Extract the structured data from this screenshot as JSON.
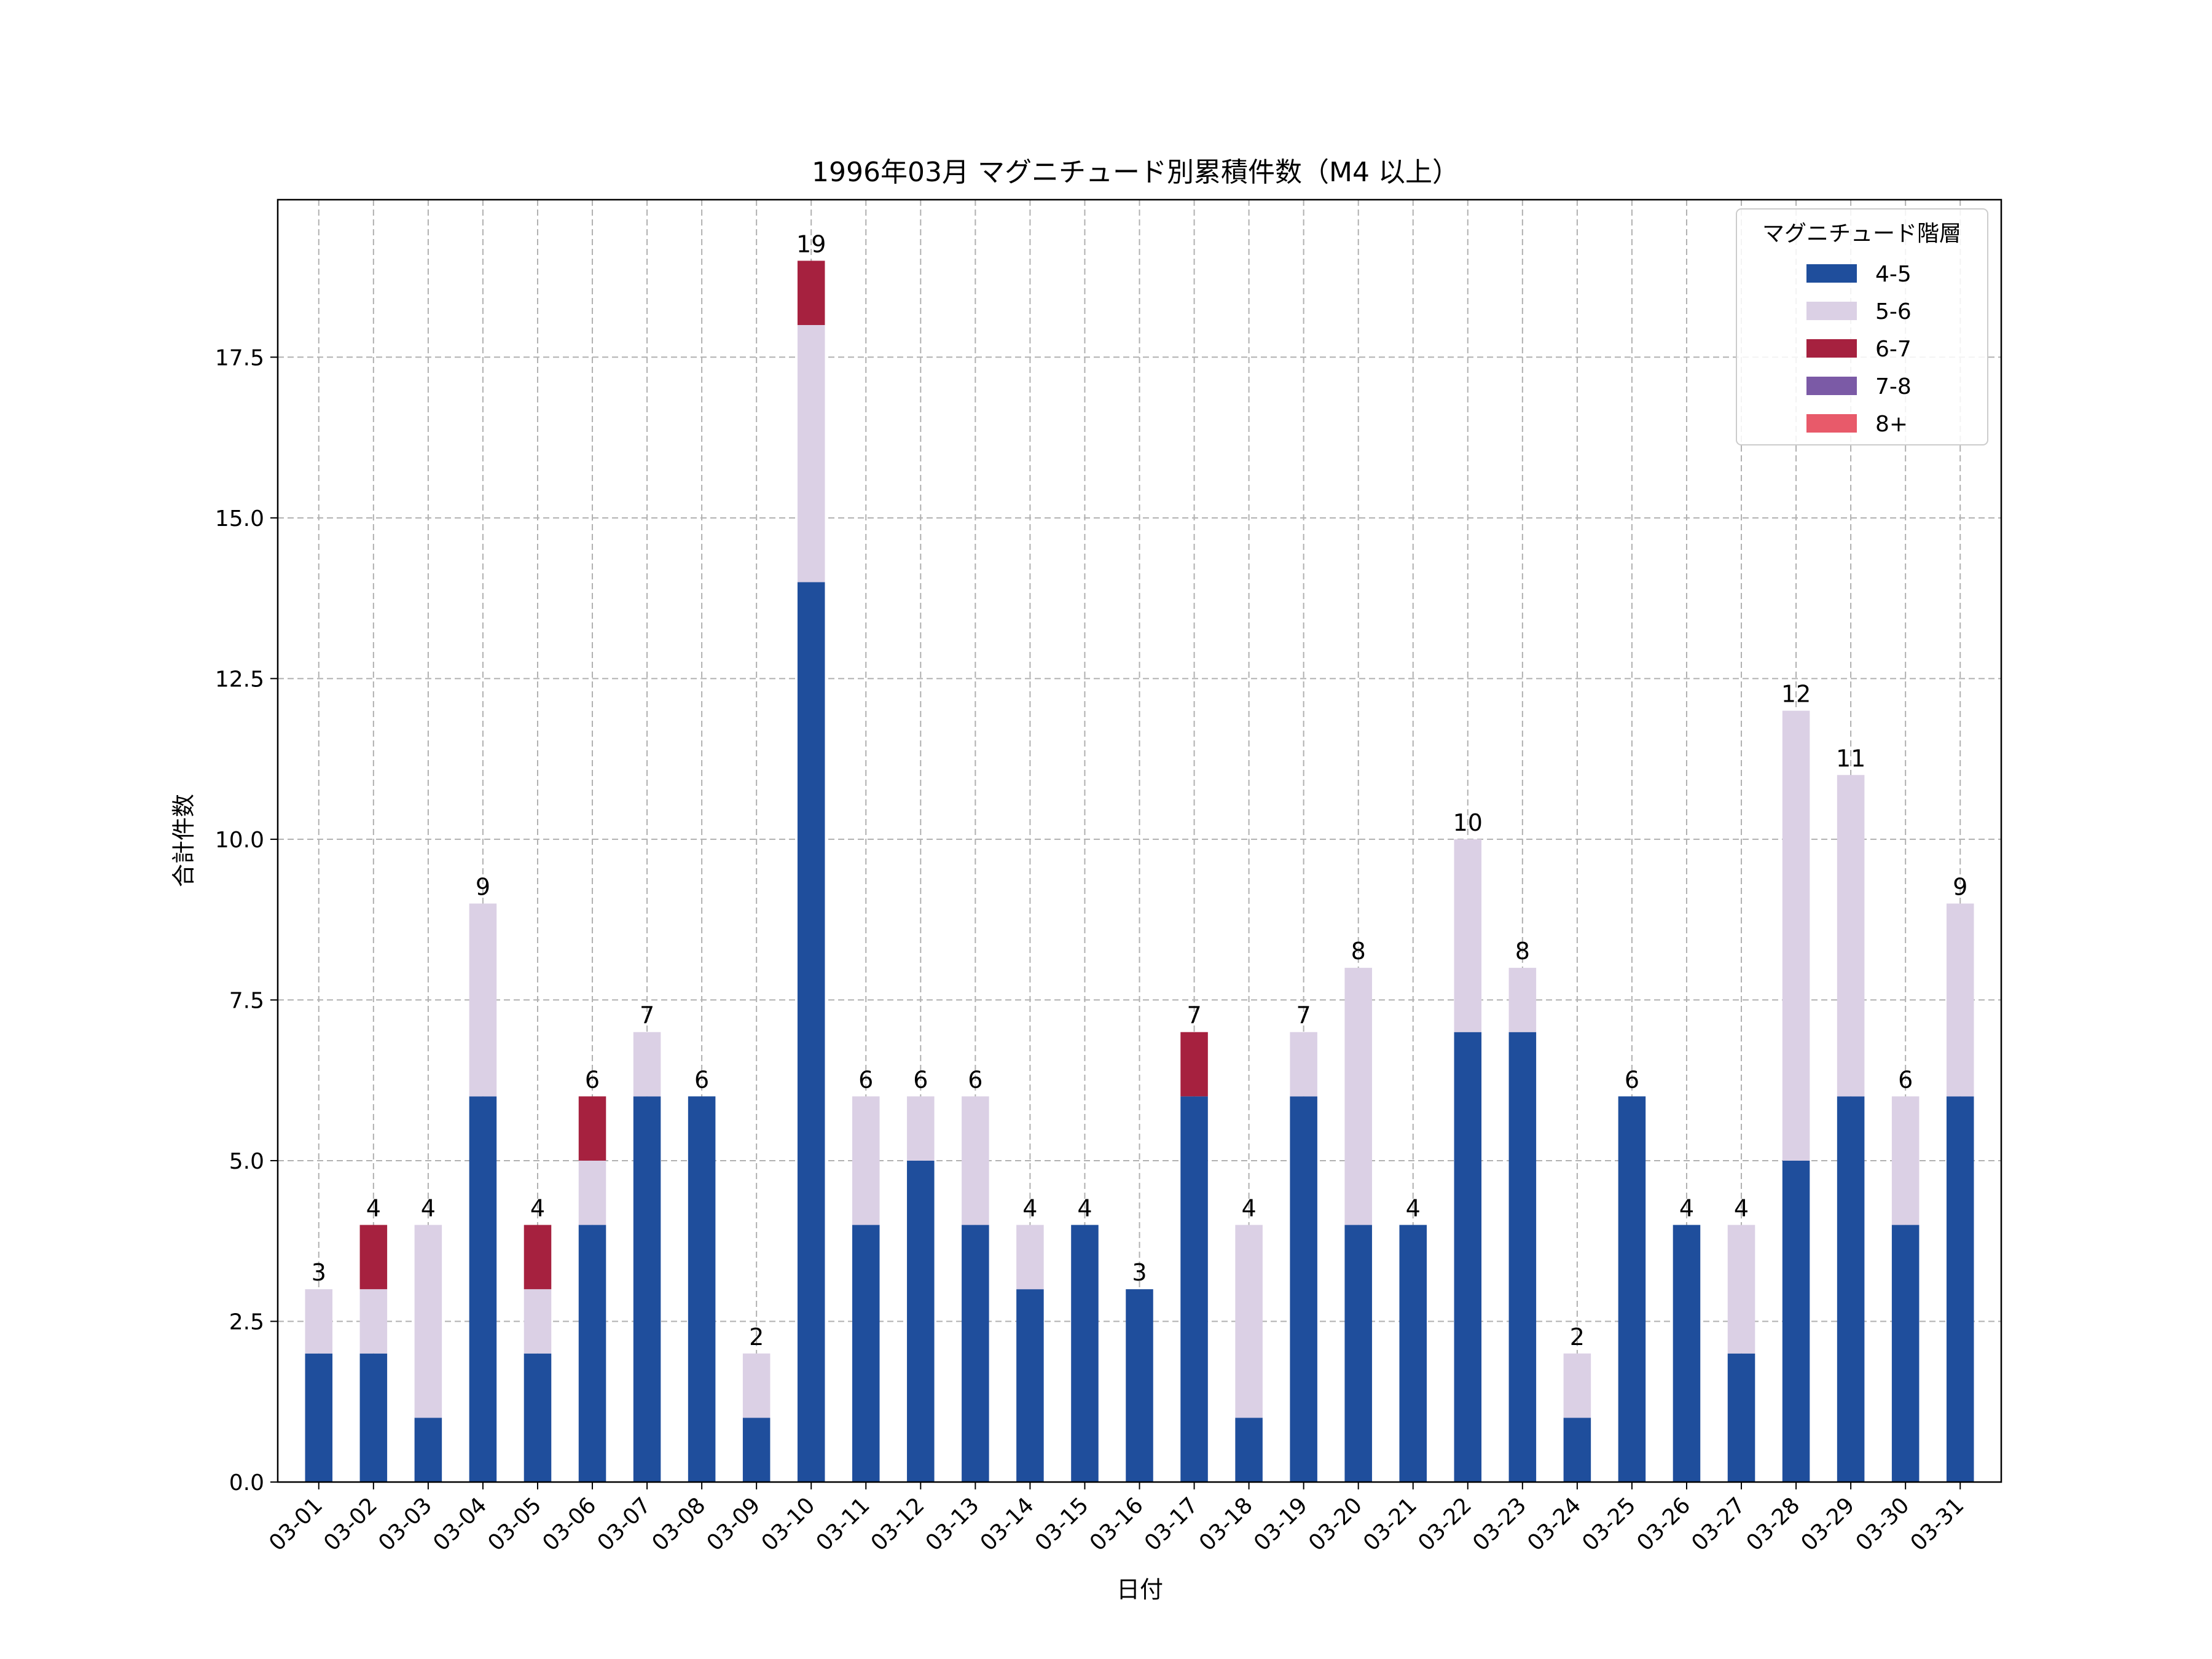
{
  "chart_data": {
    "type": "bar",
    "stacked": true,
    "title": "1996年03月 マグニチュード別累積件数（M4 以上）",
    "xlabel": "日付",
    "ylabel": "合計件数",
    "ylim": [
      0,
      19.95
    ],
    "yticks": [
      "0.0",
      "2.5",
      "5.0",
      "7.5",
      "10.0",
      "12.5",
      "15.0",
      "17.5"
    ],
    "grid": true,
    "legend_position": "top-right",
    "legend_title": "マグニチュード階層",
    "categories": [
      "03-01",
      "03-02",
      "03-03",
      "03-04",
      "03-05",
      "03-06",
      "03-07",
      "03-08",
      "03-09",
      "03-10",
      "03-11",
      "03-12",
      "03-13",
      "03-14",
      "03-15",
      "03-16",
      "03-17",
      "03-18",
      "03-19",
      "03-20",
      "03-21",
      "03-22",
      "03-23",
      "03-24",
      "03-25",
      "03-26",
      "03-27",
      "03-28",
      "03-29",
      "03-30",
      "03-31"
    ],
    "series": [
      {
        "name": "4-5",
        "color": "#1f4e9c",
        "values": [
          2,
          2,
          1,
          6,
          2,
          4,
          6,
          6,
          1,
          14,
          4,
          5,
          4,
          3,
          4,
          3,
          6,
          1,
          6,
          4,
          4,
          7,
          7,
          1,
          6,
          4,
          2,
          5,
          6,
          4,
          6
        ]
      },
      {
        "name": "5-6",
        "color": "#dbd0e5",
        "values": [
          1,
          1,
          3,
          3,
          1,
          1,
          1,
          0,
          1,
          4,
          2,
          1,
          2,
          1,
          0,
          0,
          0,
          3,
          1,
          4,
          0,
          3,
          1,
          1,
          0,
          0,
          2,
          7,
          5,
          2,
          3
        ]
      },
      {
        "name": "6-7",
        "color": "#a6213f",
        "values": [
          0,
          1,
          0,
          0,
          1,
          1,
          0,
          0,
          0,
          1,
          0,
          0,
          0,
          0,
          0,
          0,
          1,
          0,
          0,
          0,
          0,
          0,
          0,
          0,
          0,
          0,
          0,
          0,
          0,
          0,
          0
        ]
      },
      {
        "name": "7-8",
        "color": "#7b5aa6",
        "values": [
          0,
          0,
          0,
          0,
          0,
          0,
          0,
          0,
          0,
          0,
          0,
          0,
          0,
          0,
          0,
          0,
          0,
          0,
          0,
          0,
          0,
          0,
          0,
          0,
          0,
          0,
          0,
          0,
          0,
          0,
          0
        ]
      },
      {
        "name": "8+",
        "color": "#e85a6a",
        "values": [
          0,
          0,
          0,
          0,
          0,
          0,
          0,
          0,
          0,
          0,
          0,
          0,
          0,
          0,
          0,
          0,
          0,
          0,
          0,
          0,
          0,
          0,
          0,
          0,
          0,
          0,
          0,
          0,
          0,
          0,
          0
        ]
      }
    ],
    "totals": [
      "3",
      "4",
      "4",
      "9",
      "4",
      "6",
      "7",
      "6",
      "2",
      "19",
      "6",
      "6",
      "6",
      "4",
      "4",
      "3",
      "7",
      "4",
      "7",
      "8",
      "4",
      "10",
      "8",
      "2",
      "6",
      "4",
      "4",
      "12",
      "11",
      "6",
      "9"
    ]
  }
}
